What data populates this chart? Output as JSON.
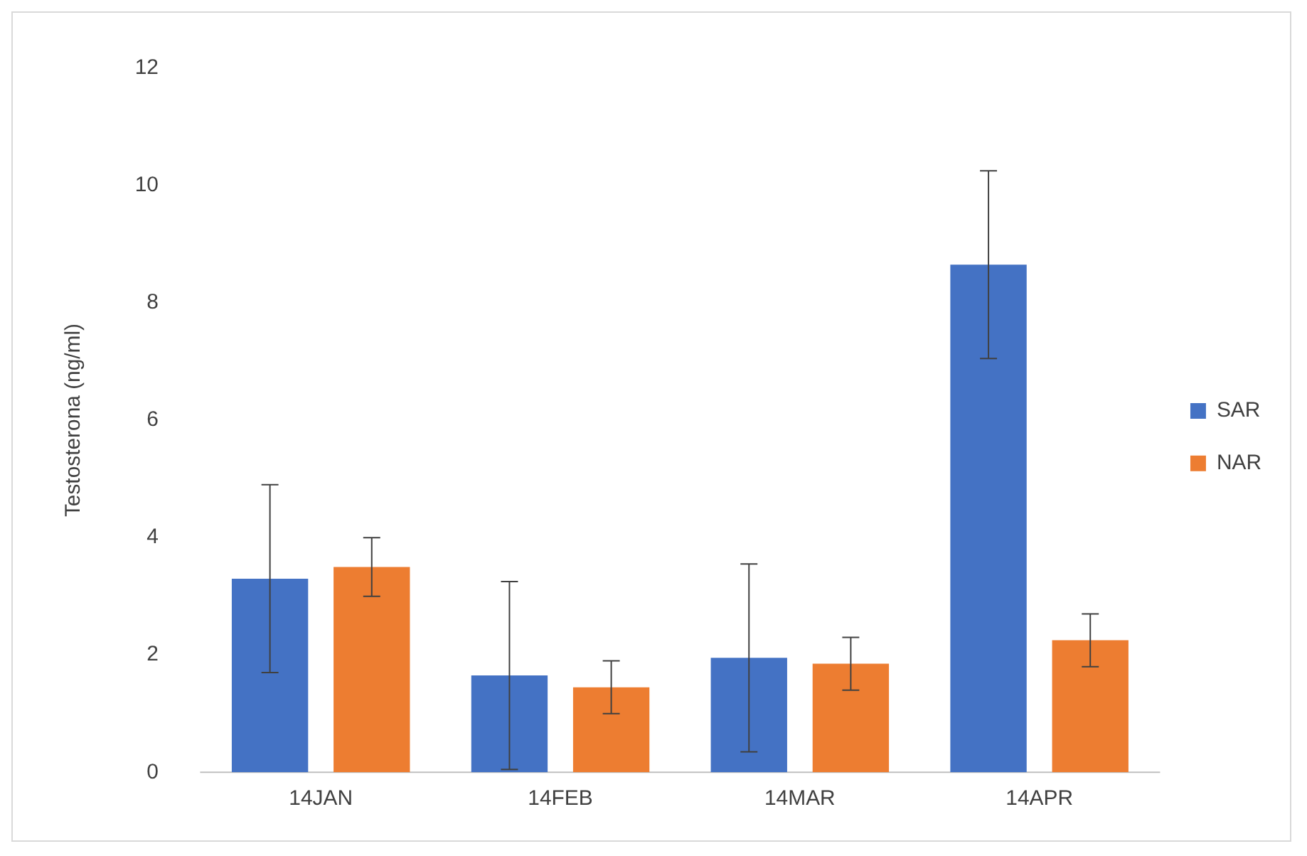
{
  "chart_data": {
    "type": "bar",
    "ylabel": "Testosterona (ng/ml)",
    "categories": [
      "14JAN",
      "14FEB",
      "14MAR",
      "14APR"
    ],
    "series": [
      {
        "name": "SAR",
        "color": "#4472c4",
        "values": [
          3.3,
          1.65,
          1.95,
          8.65
        ],
        "errors": [
          1.6,
          1.6,
          1.6,
          1.6
        ]
      },
      {
        "name": "NAR",
        "color": "#ed7d31",
        "values": [
          3.5,
          1.45,
          1.85,
          2.25
        ],
        "errors": [
          0.5,
          0.45,
          0.45,
          0.45
        ]
      }
    ],
    "ylim": [
      0,
      12
    ],
    "yticks": [
      0,
      2,
      4,
      6,
      8,
      10,
      12
    ],
    "grid": false,
    "legend": "right"
  }
}
